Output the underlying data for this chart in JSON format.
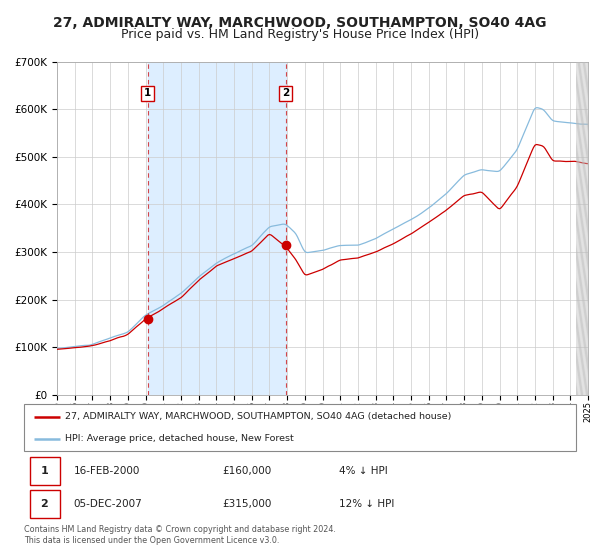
{
  "title": "27, ADMIRALTY WAY, MARCHWOOD, SOUTHAMPTON, SO40 4AG",
  "subtitle": "Price paid vs. HM Land Registry's House Price Index (HPI)",
  "legend_label_red": "27, ADMIRALTY WAY, MARCHWOOD, SOUTHAMPTON, SO40 4AG (detached house)",
  "legend_label_blue": "HPI: Average price, detached house, New Forest",
  "transaction1_date": "16-FEB-2000",
  "transaction1_price": 160000,
  "transaction1_note": "4% ↓ HPI",
  "transaction2_date": "05-DEC-2007",
  "transaction2_price": 315000,
  "transaction2_note": "12% ↓ HPI",
  "footer": "Contains HM Land Registry data © Crown copyright and database right 2024.\nThis data is licensed under the Open Government Licence v3.0.",
  "ylim": [
    0,
    700000
  ],
  "year_start": 1995,
  "year_end": 2025,
  "vline1_year": 2000.12,
  "vline2_year": 2007.92,
  "marker1_year": 2000.12,
  "marker1_price": 160000,
  "marker2_year": 2007.92,
  "marker2_price": 315000,
  "background_color": "#ffffff",
  "grid_color": "#cccccc",
  "shade_color": "#ddeeff",
  "red_color": "#cc0000",
  "blue_color": "#88bbdd",
  "title_fontsize": 10,
  "subtitle_fontsize": 9
}
